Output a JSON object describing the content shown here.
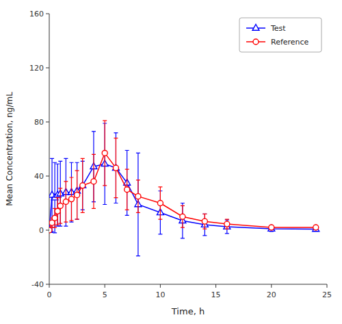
{
  "chart_data": {
    "type": "line",
    "xlabel": "Time, h",
    "ylabel": "Mean Concentration, ng/mL",
    "x": [
      0,
      0.25,
      0.5,
      0.75,
      1.0,
      1.5,
      2.0,
      2.5,
      3.0,
      4.0,
      5.0,
      6.0,
      7.0,
      8.0,
      10.0,
      12.0,
      14.0,
      16.0,
      20.0,
      24.0
    ],
    "series": [
      {
        "name": "Test",
        "color": "#0000ff",
        "marker": "triangle",
        "values": [
          0,
          26.0,
          24.0,
          26.0,
          27.0,
          28.0,
          28.0,
          29.0,
          33.0,
          47.0,
          49.0,
          46.0,
          35.0,
          19.0,
          13.0,
          7.0,
          4.0,
          2.5,
          1.0,
          0.8
        ],
        "errors": [
          0,
          27.0,
          26.0,
          23.0,
          24.0,
          25.0,
          22.0,
          21.0,
          18.0,
          26.0,
          30.0,
          26.0,
          24.0,
          38.0,
          16.0,
          13.0,
          8.0,
          5.0,
          2.0,
          1.2
        ]
      },
      {
        "name": "Reference",
        "color": "#ff0000",
        "marker": "circle",
        "values": [
          0,
          5.5,
          9.0,
          14.0,
          18.0,
          21.0,
          23.0,
          26.0,
          33.0,
          36.0,
          57.0,
          46.0,
          30.0,
          25.0,
          20.0,
          10.0,
          6.5,
          4.5,
          2.0,
          2.0
        ],
        "errors": [
          0,
          3.5,
          7.0,
          10.0,
          13.0,
          15.0,
          16.0,
          18.0,
          20.0,
          20.0,
          24.0,
          22.0,
          15.0,
          12.0,
          12.0,
          8.0,
          5.5,
          3.5,
          1.5,
          1.5
        ]
      }
    ],
    "xlim": [
      0,
      25
    ],
    "ylim": [
      -40,
      160
    ],
    "xticks": [
      0,
      5,
      10,
      15,
      20,
      25
    ],
    "yticks": [
      -40,
      0,
      40,
      80,
      120,
      160
    ],
    "grid": false,
    "legend": "upper-right"
  }
}
